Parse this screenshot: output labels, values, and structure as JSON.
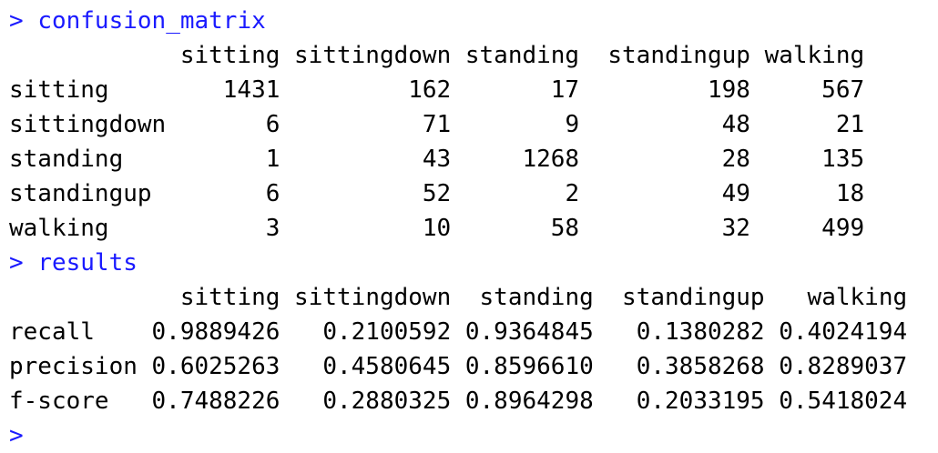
{
  "console": {
    "prompt_symbol": ">",
    "command_1": "confusion_matrix",
    "command_2": "results",
    "confusion_matrix": {
      "columns": [
        "sitting",
        "sittingdown",
        "standing",
        "standingup",
        "walking"
      ],
      "rows": [
        {
          "name": "sitting",
          "values": [
            "1431",
            "162",
            "17",
            "198",
            "567"
          ]
        },
        {
          "name": "sittingdown",
          "values": [
            "6",
            "71",
            "9",
            "48",
            "21"
          ]
        },
        {
          "name": "standing",
          "values": [
            "1",
            "43",
            "1268",
            "28",
            "135"
          ]
        },
        {
          "name": "standingup",
          "values": [
            "6",
            "52",
            "2",
            "49",
            "18"
          ]
        },
        {
          "name": "walking",
          "values": [
            "3",
            "10",
            "58",
            "32",
            "499"
          ]
        }
      ]
    },
    "results": {
      "columns": [
        "sitting",
        "sittingdown",
        "standing",
        "standingup",
        "walking"
      ],
      "rows": [
        {
          "name": "recall",
          "values": [
            "0.9889426",
            "0.2100592",
            "0.9364845",
            "0.1380282",
            "0.4024194"
          ]
        },
        {
          "name": "precision",
          "values": [
            "0.6025263",
            "0.4580645",
            "0.8596610",
            "0.3858268",
            "0.8289037"
          ]
        },
        {
          "name": "f-score",
          "values": [
            "0.7488226",
            "0.2880325",
            "0.8964298",
            "0.2033195",
            "0.5418024"
          ]
        }
      ]
    }
  },
  "colors": {
    "prompt": "#1a1aff",
    "output": "#000000",
    "background": "#ffffff"
  }
}
